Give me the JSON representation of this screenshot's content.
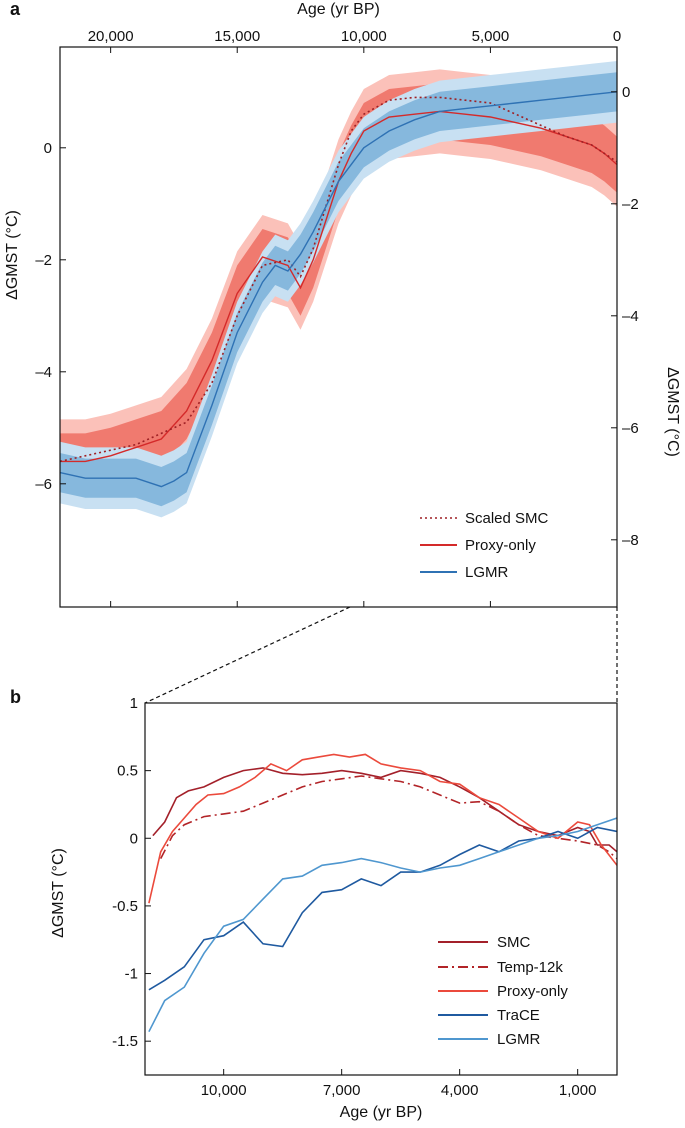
{
  "chart_data": [
    {
      "panel_label": "a",
      "type": "line",
      "top_xlabel": "Age (yr BP)",
      "x_range": [
        22000,
        0
      ],
      "x_ticks": [
        20000,
        15000,
        10000,
        5000,
        0
      ],
      "x_tick_labels": [
        "20,000",
        "15,000",
        "10,000",
        "5,000",
        "0"
      ],
      "left_ylabel": "ΔGMST (°C)",
      "left_ylim": [
        -8.2,
        1.8
      ],
      "left_y_ticks": [
        0,
        -2,
        -4,
        -6
      ],
      "left_y_tick_labels": [
        "0",
        "–2",
        "–4",
        "–6"
      ],
      "right_ylabel": "ΔGMST (°C)",
      "right_ylim": [
        -9.2,
        0.8
      ],
      "right_y_ticks": [
        0,
        -2,
        -4,
        -6,
        -8
      ],
      "right_y_tick_labels": [
        "0",
        "–2",
        "–4",
        "–6",
        "–8"
      ],
      "colors": {
        "red_line": "#d42a2a",
        "red_inner": "#f07a6f",
        "red_outer": "#fbc1b9",
        "blue_line": "#2f72b4",
        "blue_inner": "#86b8dd",
        "blue_outer": "#c8e0f2",
        "scaled_smc": "#9e1f24"
      },
      "legend": [
        "Scaled SMC",
        "Proxy-only",
        "LGMR"
      ],
      "series": [
        {
          "name": "Proxy-only",
          "axis": "left",
          "x": [
            22000,
            21000,
            20000,
            19000,
            18000,
            17000,
            16000,
            15000,
            14000,
            13000,
            12500,
            12000,
            11000,
            10500,
            10000,
            9000,
            8000,
            7000,
            6000,
            5000,
            4000,
            3000,
            2000,
            1000,
            500,
            0
          ],
          "y": [
            -5.6,
            -5.6,
            -5.5,
            -5.35,
            -5.2,
            -4.7,
            -3.8,
            -2.6,
            -1.95,
            -2.1,
            -2.5,
            -2.0,
            -0.6,
            -0.1,
            0.3,
            0.55,
            0.6,
            0.65,
            0.6,
            0.55,
            0.45,
            0.35,
            0.2,
            0.05,
            -0.1,
            -0.3
          ],
          "inner_half_width": 0.5,
          "outer_half_width": 0.75
        },
        {
          "name": "Scaled SMC",
          "axis": "left",
          "x": [
            22000,
            21000,
            20000,
            19000,
            18000,
            17000,
            16000,
            15000,
            14000,
            13000,
            12500,
            12000,
            11000,
            10500,
            10000,
            9000,
            8000,
            7000,
            6000,
            5000,
            4000,
            3000,
            2000,
            1000,
            500,
            0
          ],
          "y": [
            -5.6,
            -5.5,
            -5.4,
            -5.3,
            -5.1,
            -4.9,
            -4.2,
            -3.0,
            -2.1,
            -2.0,
            -2.3,
            -1.8,
            -0.3,
            0.3,
            0.6,
            0.85,
            0.9,
            0.9,
            0.85,
            0.8,
            0.6,
            0.4,
            0.2,
            0.05,
            -0.1,
            -0.25
          ]
        },
        {
          "name": "LGMR",
          "axis": "right",
          "x": [
            22000,
            21000,
            20000,
            19000,
            18000,
            17500,
            17000,
            16000,
            15000,
            14000,
            13500,
            13000,
            12500,
            12000,
            11000,
            10000,
            9000,
            8000,
            7000,
            6000,
            5000,
            4000,
            3000,
            2000,
            1000,
            0
          ],
          "y": [
            -6.8,
            -6.9,
            -6.9,
            -6.9,
            -7.05,
            -6.95,
            -6.8,
            -5.6,
            -4.3,
            -3.4,
            -3.1,
            -3.2,
            -2.9,
            -2.5,
            -1.6,
            -1.0,
            -0.7,
            -0.5,
            -0.35,
            -0.3,
            -0.25,
            -0.2,
            -0.15,
            -0.1,
            -0.05,
            0.0
          ],
          "inner_half_width": 0.35,
          "outer_half_width": 0.55
        }
      ]
    },
    {
      "panel_label": "b",
      "type": "line",
      "xlabel": "Age (yr BP)",
      "ylabel": "ΔGMST (°C)",
      "xlim": [
        12000,
        0
      ],
      "x_ticks": [
        10000,
        7000,
        4000,
        1000
      ],
      "x_tick_labels": [
        "10,000",
        "7,000",
        "4,000",
        "1,000"
      ],
      "ylim": [
        -1.75,
        1.0
      ],
      "y_ticks": [
        1,
        0.5,
        0,
        -0.5,
        -1,
        -1.5
      ],
      "y_tick_labels": [
        "1",
        "0.5",
        "0",
        "-0.5",
        "-1",
        "-1.5"
      ],
      "colors": {
        "SMC": "#a3202a",
        "Temp-12k": "#b22428",
        "Proxy-only": "#eb4a3c",
        "TraCE": "#1f5aa0",
        "LGMR": "#4f97cf"
      },
      "legend": [
        "SMC",
        "Temp-12k",
        "Proxy-only",
        "TraCE",
        "LGMR"
      ],
      "series": [
        {
          "name": "SMC",
          "x": [
            11800,
            11500,
            11200,
            10900,
            10500,
            10000,
            9500,
            9000,
            8500,
            8000,
            7500,
            7000,
            6500,
            6000,
            5500,
            5000,
            4500,
            4000,
            3500,
            3000,
            2500,
            2000,
            1500,
            1000,
            700,
            500,
            200,
            0
          ],
          "y": [
            0.02,
            0.12,
            0.3,
            0.35,
            0.38,
            0.45,
            0.5,
            0.52,
            0.48,
            0.47,
            0.48,
            0.5,
            0.48,
            0.45,
            0.5,
            0.48,
            0.45,
            0.38,
            0.3,
            0.2,
            0.1,
            0.05,
            0.02,
            0.08,
            0.05,
            -0.05,
            -0.05,
            -0.1
          ]
        },
        {
          "name": "Temp-12k",
          "dash": "10 4 2 4",
          "x": [
            11600,
            11300,
            11000,
            10500,
            10000,
            9500,
            9000,
            8500,
            8000,
            7500,
            7000,
            6500,
            6000,
            5500,
            5000,
            4500,
            4000,
            3500,
            3000,
            2500,
            2000,
            1500,
            1000,
            500,
            200,
            0
          ],
          "y": [
            -0.15,
            0.02,
            0.1,
            0.16,
            0.18,
            0.2,
            0.26,
            0.32,
            0.38,
            0.42,
            0.44,
            0.46,
            0.44,
            0.42,
            0.38,
            0.32,
            0.26,
            0.27,
            0.2,
            0.1,
            0.02,
            0.0,
            -0.02,
            -0.05,
            -0.1,
            -0.15
          ]
        },
        {
          "name": "Proxy-only",
          "x": [
            11900,
            11600,
            11300,
            11000,
            10700,
            10400,
            10000,
            9600,
            9200,
            8800,
            8400,
            8000,
            7600,
            7200,
            6800,
            6400,
            6000,
            5500,
            5000,
            4500,
            4000,
            3500,
            3000,
            2500,
            2000,
            1500,
            1000,
            700,
            400,
            0
          ],
          "y": [
            -0.48,
            -0.1,
            0.05,
            0.15,
            0.25,
            0.32,
            0.33,
            0.38,
            0.45,
            0.55,
            0.5,
            0.58,
            0.6,
            0.62,
            0.6,
            0.62,
            0.55,
            0.52,
            0.5,
            0.42,
            0.4,
            0.3,
            0.25,
            0.15,
            0.05,
            0.0,
            0.12,
            0.1,
            -0.05,
            -0.2
          ]
        },
        {
          "name": "TraCE",
          "x": [
            11900,
            11500,
            11000,
            10500,
            10000,
            9500,
            9000,
            8500,
            8000,
            7500,
            7000,
            6500,
            6000,
            5500,
            5000,
            4500,
            4000,
            3500,
            3000,
            2500,
            2000,
            1500,
            1000,
            500,
            0
          ],
          "y": [
            -1.12,
            -1.05,
            -0.95,
            -0.75,
            -0.72,
            -0.62,
            -0.78,
            -0.8,
            -0.55,
            -0.4,
            -0.38,
            -0.3,
            -0.35,
            -0.25,
            -0.25,
            -0.2,
            -0.12,
            -0.05,
            -0.1,
            -0.02,
            0.0,
            0.05,
            0.0,
            0.08,
            0.05
          ]
        },
        {
          "name": "LGMR",
          "x": [
            11900,
            11500,
            11000,
            10500,
            10000,
            9500,
            9000,
            8500,
            8000,
            7500,
            7000,
            6500,
            6000,
            5500,
            5000,
            4500,
            4000,
            3500,
            3000,
            2500,
            2000,
            1500,
            1000,
            500,
            0
          ],
          "y": [
            -1.43,
            -1.2,
            -1.1,
            -0.85,
            -0.65,
            -0.6,
            -0.45,
            -0.3,
            -0.28,
            -0.2,
            -0.18,
            -0.15,
            -0.18,
            -0.22,
            -0.25,
            -0.22,
            -0.2,
            -0.15,
            -0.1,
            -0.05,
            0.0,
            0.02,
            0.05,
            0.1,
            0.15
          ]
        }
      ]
    }
  ]
}
